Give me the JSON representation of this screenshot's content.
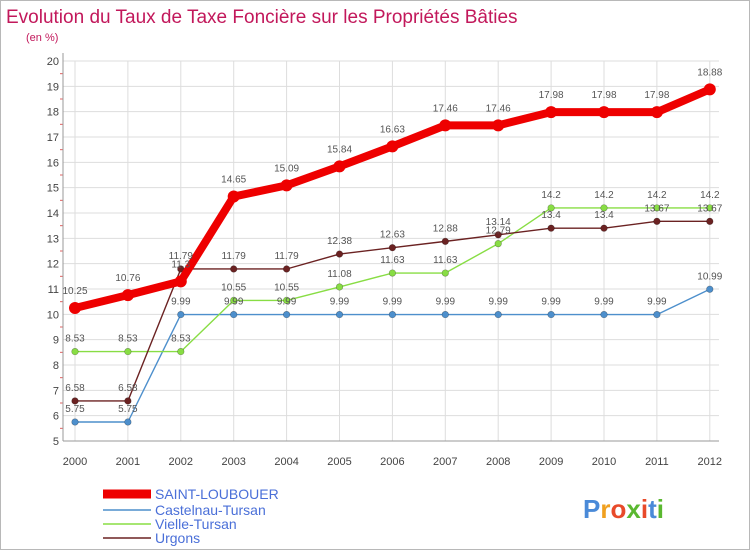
{
  "chart_data": {
    "type": "line",
    "title": "Evolution du Taux de Taxe Foncière sur les Propriétés Bâties",
    "subtitle": "(en %)",
    "xlabel": "",
    "ylabel": "",
    "ylim": [
      5,
      20
    ],
    "grid": true,
    "legend_position": "bottom-left",
    "x": [
      "2000",
      "2001",
      "2002",
      "2003",
      "2004",
      "2005",
      "2006",
      "2007",
      "2008",
      "2009",
      "2010",
      "2011",
      "2012"
    ],
    "y_ticks": [
      "5",
      "6",
      "7",
      "8",
      "9",
      "10",
      "11",
      "12",
      "13",
      "14",
      "15",
      "16",
      "17",
      "18",
      "19",
      "20"
    ],
    "series": [
      {
        "name": "SAINT-LOUBOUER",
        "color": "#ee0000",
        "values": [
          10.25,
          10.76,
          11.3,
          14.65,
          15.09,
          15.84,
          16.63,
          17.46,
          17.46,
          17.98,
          17.98,
          17.98,
          18.88
        ],
        "labels": [
          "10.25",
          "10.76",
          "11.3",
          "14.65",
          "15.09",
          "15.84",
          "16.63",
          "17.46",
          "17.46",
          "17.98",
          "17.98",
          "17.98",
          "18.88"
        ]
      },
      {
        "name": "Castelnau-Tursan",
        "color": "#4d8fcc",
        "values": [
          5.75,
          5.75,
          9.99,
          9.99,
          9.99,
          9.99,
          9.99,
          9.99,
          9.99,
          9.99,
          9.99,
          9.99,
          10.99
        ],
        "labels": [
          "5.75",
          "5.75",
          "9.99",
          "9.99",
          "9.99",
          "9.99",
          "9.99",
          "9.99",
          "9.99",
          "9.99",
          "9.99",
          "9.99",
          "10.99"
        ]
      },
      {
        "name": "Vielle-Tursan",
        "color": "#88dd44",
        "values": [
          8.53,
          8.53,
          8.53,
          10.55,
          10.55,
          11.08,
          11.63,
          11.63,
          12.79,
          14.2,
          14.2,
          14.2,
          14.2
        ],
        "labels": [
          "8.53",
          "8.53",
          "8.53",
          "10.55",
          "10.55",
          "11.08",
          "11.63",
          "11.63",
          "12.79",
          "14.2",
          "14.2",
          "14.2",
          "14.2"
        ]
      },
      {
        "name": "Urgons",
        "color": "#6b2222",
        "values": [
          6.58,
          6.58,
          11.79,
          11.79,
          11.79,
          12.38,
          12.63,
          12.88,
          13.14,
          13.4,
          13.4,
          13.67,
          13.67
        ],
        "labels": [
          "6.58",
          "6.58",
          "11.79",
          "11.79",
          "11.79",
          "12.38",
          "12.63",
          "12.88",
          "13.14",
          "13.4",
          "13.4",
          "13.67",
          "13.67"
        ]
      }
    ]
  },
  "colors": {
    "title": "#c2185b",
    "legend_text": "#4a6fd8",
    "grid": "#dddddd",
    "axis": "#999999"
  },
  "brand": {
    "logo_text": "Proxiti"
  }
}
